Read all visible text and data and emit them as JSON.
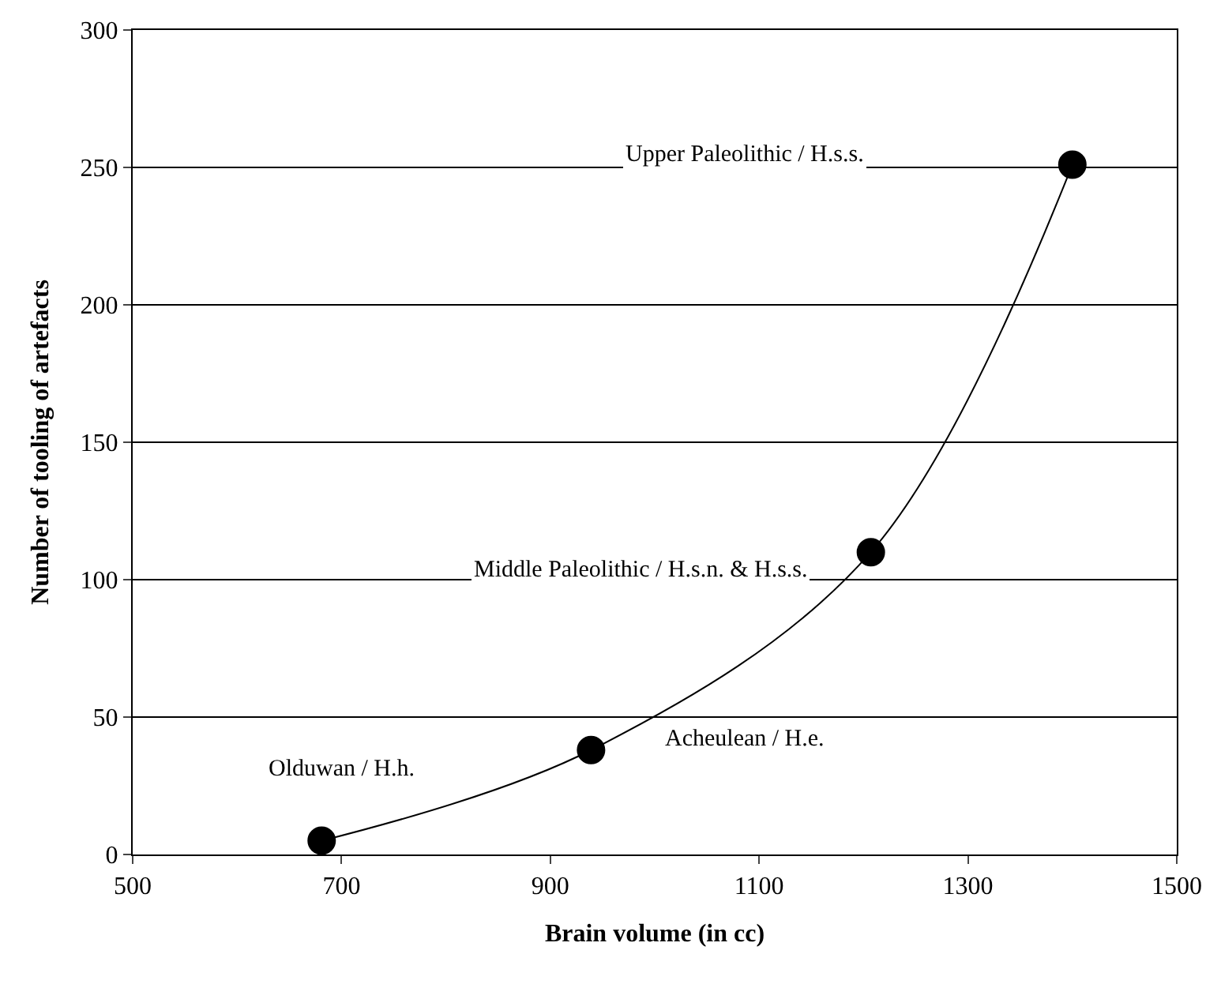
{
  "chart_data": {
    "type": "line",
    "xlabel": "Brain volume (in cc)",
    "ylabel": "Number of tooling of artefacts",
    "x": [
      681,
      939,
      1207,
      1400
    ],
    "series": [
      {
        "color": "#000000",
        "values": [
          5,
          38,
          110,
          251
        ]
      }
    ],
    "marker": "circle",
    "line_style": "solid",
    "grid": "y",
    "legend": false,
    "xlim": [
      500,
      1500
    ],
    "xticks": [
      500,
      700,
      900,
      1100,
      1300,
      1500
    ],
    "ylim": [
      0,
      300
    ],
    "yticks": [
      0,
      50,
      100,
      150,
      200,
      250,
      300
    ],
    "annotations": [
      "Olduwan / H.h.",
      "Acheulean / H.e.",
      "Middle Paleolithic / H.s.n. & H.s.s.",
      "Upper Paleolithic / H.s.s."
    ]
  }
}
